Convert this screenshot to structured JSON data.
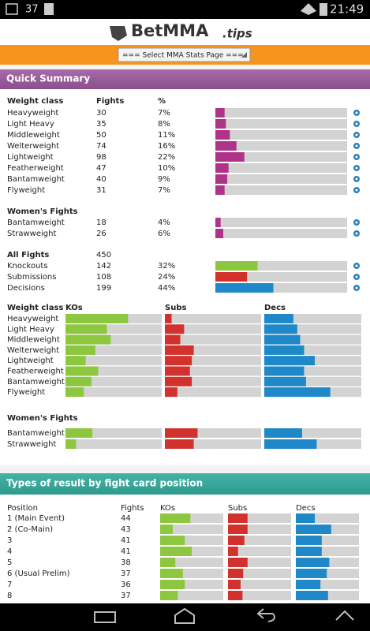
{
  "status_bar": {
    "notification_count": "37",
    "time": "21:49"
  },
  "header": {
    "logo_main": "BetMMA",
    "logo_suffix": ".tips",
    "select": "=== Select MMA Stats Page ==="
  },
  "quick_summary": {
    "title": "Quick Summary",
    "columns": [
      "Weight class",
      "Fights",
      "%"
    ],
    "mens": [
      {
        "name": "Heavyweight",
        "fights": 30,
        "pct": {
          "value": 7,
          "label": "7%"
        }
      },
      {
        "name": "Light Heavy",
        "fights": 35,
        "pct": {
          "value": 8,
          "label": "8%"
        }
      },
      {
        "name": "Middleweight",
        "fights": 50,
        "pct": {
          "value": 11,
          "label": "11%"
        }
      },
      {
        "name": "Welterweight",
        "fights": 74,
        "pct": {
          "value": 16,
          "label": "16%"
        }
      },
      {
        "name": "Lightweight",
        "fights": 98,
        "pct": {
          "value": 22,
          "label": "22%"
        }
      },
      {
        "name": "Featherweight",
        "fights": 47,
        "pct": {
          "value": 10,
          "label": "10%"
        }
      },
      {
        "name": "Bantamweight",
        "fights": 40,
        "pct": {
          "value": 9,
          "label": "9%"
        }
      },
      {
        "name": "Flyweight",
        "fights": 31,
        "pct": {
          "value": 7,
          "label": "7%"
        }
      }
    ],
    "womens_title": "Women's Fights",
    "womens": [
      {
        "name": "Bantamweight",
        "fights": 18,
        "pct": {
          "value": 4,
          "label": "4%"
        }
      },
      {
        "name": "Strawweight",
        "fights": 26,
        "pct": {
          "value": 6,
          "label": "6%"
        }
      }
    ],
    "all_title": "All Fights",
    "all_total": 450,
    "results": [
      {
        "name": "Knockouts",
        "fights": 142,
        "pct": {
          "value": 32,
          "label": "32%"
        },
        "color": "#8dc63f"
      },
      {
        "name": "Submissions",
        "fights": 108,
        "pct": {
          "value": 24,
          "label": "24%"
        },
        "color": "#d2322d"
      },
      {
        "name": "Decisions",
        "fights": 199,
        "pct": {
          "value": 44,
          "label": "44%"
        },
        "color": "#1e88c8"
      }
    ],
    "breakdown_columns": [
      "Weight class",
      "KOs",
      "Subs",
      "Decs"
    ],
    "breakdown": [
      {
        "name": "Heavyweight",
        "kos": 65,
        "subs": 7,
        "decs": 30
      },
      {
        "name": "Light Heavy",
        "kos": 43,
        "subs": 20,
        "decs": 34
      },
      {
        "name": "Middleweight",
        "kos": 47,
        "subs": 16,
        "decs": 37
      },
      {
        "name": "Welterweight",
        "kos": 31,
        "subs": 30,
        "decs": 41
      },
      {
        "name": "Lightweight",
        "kos": 21,
        "subs": 28,
        "decs": 52
      },
      {
        "name": "Featherweight",
        "kos": 34,
        "subs": 26,
        "decs": 41
      },
      {
        "name": "Bantamweight",
        "kos": 27,
        "subs": 28,
        "decs": 43
      },
      {
        "name": "Flyweight",
        "kos": 19,
        "subs": 13,
        "decs": 68
      }
    ],
    "breakdown_womens_title": "Women's Fights",
    "breakdown_womens": [
      {
        "name": "Bantamweight",
        "kos": 28,
        "subs": 34,
        "decs": 39
      },
      {
        "name": "Strawweight",
        "kos": 11,
        "subs": 30,
        "decs": 54
      }
    ]
  },
  "card_position": {
    "title": "Types of result by fight card position",
    "columns": [
      "Position",
      "Fights",
      "KOs",
      "Subs",
      "Decs"
    ],
    "rows": [
      {
        "position": "1 (Main Event)",
        "fights": 44,
        "kos": 48,
        "subs": 31,
        "decs": 30
      },
      {
        "position": "2 (Co-Main)",
        "fights": 43,
        "kos": 20,
        "subs": 31,
        "decs": 56
      },
      {
        "position": "3",
        "fights": 41,
        "kos": 39,
        "subs": 26,
        "decs": 41
      },
      {
        "position": "4",
        "fights": 41,
        "kos": 50,
        "subs": 16,
        "decs": 41
      },
      {
        "position": "5",
        "fights": 38,
        "kos": 24,
        "subs": 31,
        "decs": 53
      },
      {
        "position": "6 (Usual Prelim)",
        "fights": 37,
        "kos": 36,
        "subs": 24,
        "decs": 49
      },
      {
        "position": "7",
        "fights": 36,
        "kos": 39,
        "subs": 20,
        "decs": 39
      },
      {
        "position": "8",
        "fights": 37,
        "kos": 28,
        "subs": 23,
        "decs": 51
      }
    ]
  }
}
